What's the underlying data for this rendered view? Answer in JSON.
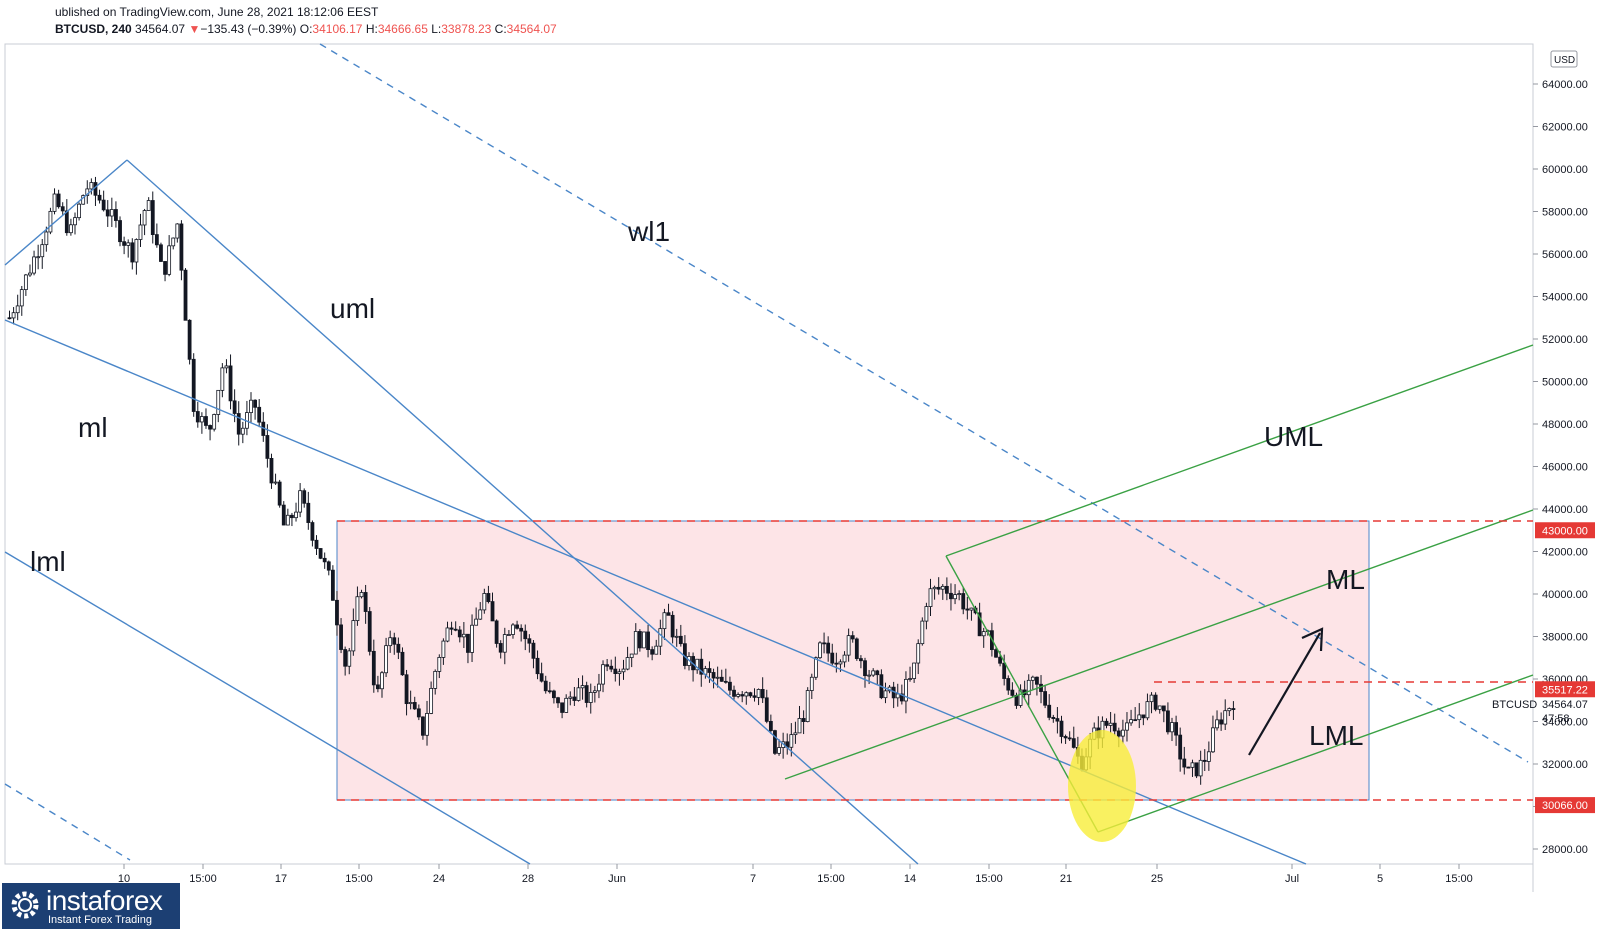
{
  "header": {
    "published": "ublished on TradingView.com, June 28, 2021 18:12:06 EEST",
    "symbol": "BTCUSD, 240",
    "last": "34564.07",
    "change_arrow": "▼",
    "change": "−135.43 (−0.39%)",
    "o_label": "O:",
    "o_value": "34106.17",
    "h_label": "H:",
    "h_value": "34666.65",
    "l_label": "L:",
    "l_value": "33878.23",
    "c_label": "C:",
    "c_value": "34564.07"
  },
  "logo": {
    "brand": "instaforex",
    "tagline": "Instant Forex Trading",
    "icon": "gear-logo-icon"
  },
  "colors": {
    "up_candle": "#26a69a",
    "candle": "#131722",
    "blue_line": "#4a86c8",
    "green_line": "#3aa144",
    "range_fill": "#fde4e7",
    "red_dash": "#e53935",
    "highlight": "#f7ee3a"
  },
  "chart_data": {
    "type": "candlestick",
    "symbol": "BTCUSD",
    "currency": "USD",
    "ylim": [
      27000,
      65000
    ],
    "y_ticks": [
      28000,
      30000,
      32000,
      34000,
      36000,
      38000,
      40000,
      42000,
      44000,
      46000,
      48000,
      50000,
      52000,
      54000,
      56000,
      58000,
      60000,
      62000,
      64000
    ],
    "y_tick_labels": [
      "28000.00",
      "30000.00",
      "32000.00",
      "34000.00",
      "36000.00",
      "38000.00",
      "40000.00",
      "42000.00",
      "44000.00",
      "46000.00",
      "48000.00",
      "50000.00",
      "52000.00",
      "54000.00",
      "56000.00",
      "58000.00",
      "60000.00",
      "62000.00",
      "64000.00"
    ],
    "x_ticks": [
      "10",
      "15:00",
      "17",
      "15:00",
      "24",
      "28",
      "Jun",
      "7",
      "15:00",
      "14",
      "15:00",
      "21",
      "25",
      "Jul",
      "5",
      "15:00"
    ],
    "price_path": [
      [
        0,
        53000
      ],
      [
        2,
        56500
      ],
      [
        3,
        58500
      ],
      [
        4,
        57000
      ],
      [
        5,
        59200
      ],
      [
        6,
        58500
      ],
      [
        7,
        57300
      ],
      [
        8,
        56000
      ],
      [
        9,
        58500
      ],
      [
        10,
        55000
      ],
      [
        11,
        57500
      ],
      [
        12,
        49000
      ],
      [
        13,
        47500
      ],
      [
        14,
        51000
      ],
      [
        15,
        47500
      ],
      [
        16,
        49000
      ],
      [
        17,
        46000
      ],
      [
        18,
        43000
      ],
      [
        19,
        44500
      ],
      [
        20,
        42500
      ],
      [
        21,
        40500
      ],
      [
        22,
        36500
      ],
      [
        23,
        40500
      ],
      [
        24,
        35000
      ],
      [
        25,
        38500
      ],
      [
        26,
        35000
      ],
      [
        27,
        33500
      ],
      [
        28,
        37000
      ],
      [
        29,
        39000
      ],
      [
        30,
        37500
      ],
      [
        31,
        40000
      ],
      [
        32,
        37500
      ],
      [
        33,
        39000
      ],
      [
        34,
        37500
      ],
      [
        35,
        35500
      ],
      [
        36,
        34500
      ],
      [
        37,
        35500
      ],
      [
        38,
        35000
      ],
      [
        39,
        37000
      ],
      [
        40,
        36500
      ],
      [
        41,
        38000
      ],
      [
        42,
        37500
      ],
      [
        43,
        39000
      ],
      [
        44,
        37000
      ],
      [
        45,
        36500
      ],
      [
        46,
        36000
      ],
      [
        47,
        35500
      ],
      [
        48,
        35500
      ],
      [
        49,
        35500
      ],
      [
        50,
        32500
      ],
      [
        51,
        33000
      ],
      [
        52,
        34500
      ],
      [
        53,
        37500
      ],
      [
        54,
        37000
      ],
      [
        55,
        37800
      ],
      [
        56,
        36500
      ],
      [
        57,
        35500
      ],
      [
        58,
        35000
      ],
      [
        59,
        36000
      ],
      [
        60,
        40000
      ],
      [
        61,
        40300
      ],
      [
        62,
        40000
      ],
      [
        63,
        38800
      ],
      [
        64,
        38000
      ],
      [
        65,
        36000
      ],
      [
        66,
        35000
      ],
      [
        67,
        35800
      ],
      [
        68,
        34500
      ],
      [
        69,
        33500
      ],
      [
        70,
        32000
      ],
      [
        71,
        33500
      ],
      [
        72,
        34000
      ],
      [
        73,
        33500
      ],
      [
        74,
        34500
      ],
      [
        75,
        35000
      ],
      [
        76,
        33500
      ],
      [
        77,
        31500
      ],
      [
        78,
        32000
      ],
      [
        79,
        34000
      ],
      [
        80,
        35000
      ]
    ],
    "annotations": {
      "line_labels": [
        "uml",
        "ml",
        "lml",
        "wl1",
        "UML",
        "ML",
        "LML"
      ],
      "price_labels": [
        {
          "text": "43000.00",
          "price": 43000
        },
        {
          "text": "35517.22",
          "price": 35517.22
        },
        {
          "text": "30066.00",
          "price": 30066
        }
      ],
      "range_box": {
        "top": 43000,
        "bottom": 30066
      },
      "last_price": {
        "symbol": "BTCUSD",
        "value": "34564.07",
        "countdown": "47:58"
      }
    }
  }
}
